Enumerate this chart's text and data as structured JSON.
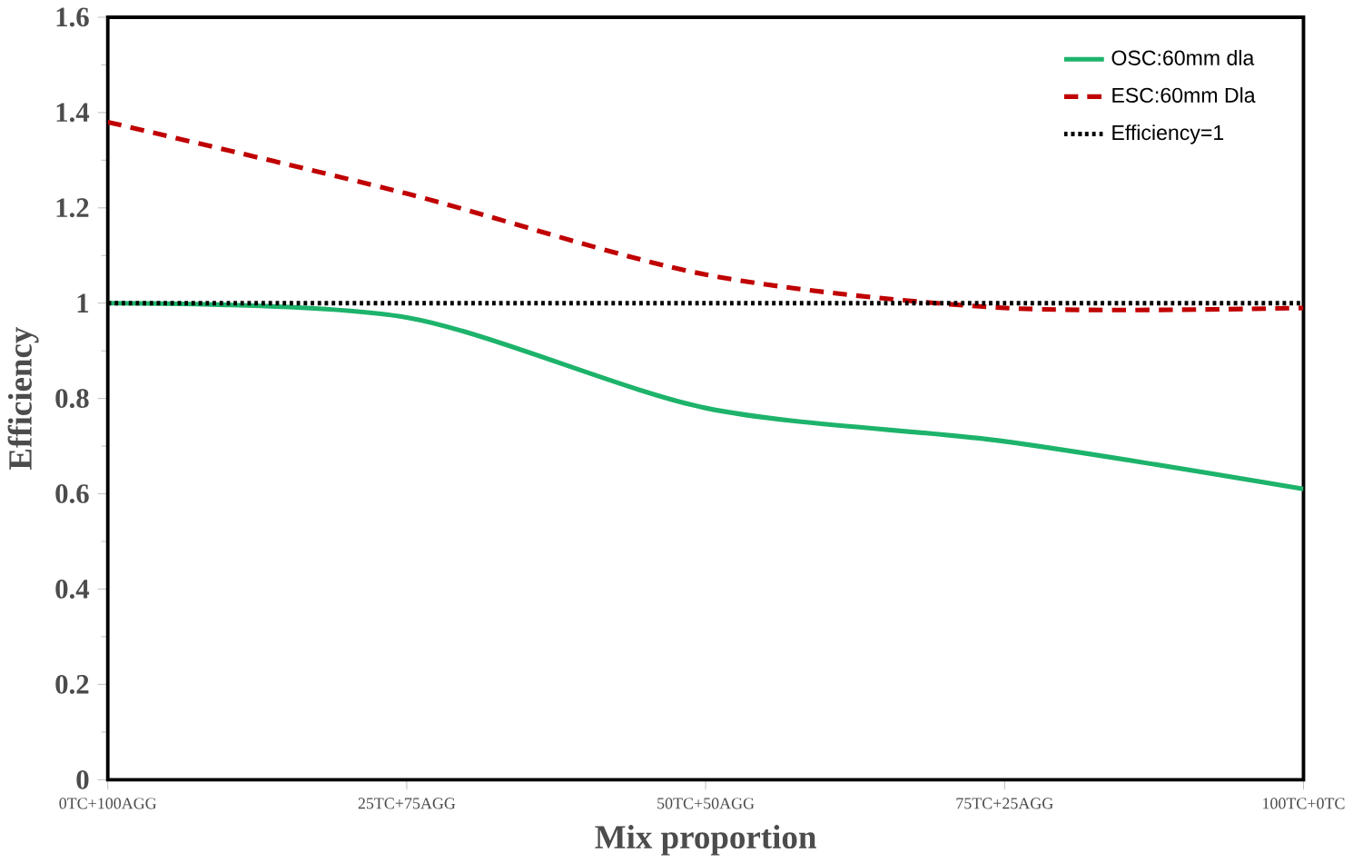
{
  "chart_data": {
    "type": "line",
    "xlabel": "Mix proportion",
    "ylabel": "Efficiency",
    "categories": [
      "0TC+100AGG",
      "25TC+75AGG",
      "50TC+50AGG",
      "75TC+25AGG",
      "100TC+0TC"
    ],
    "series": [
      {
        "name": "OSC:60mm dla",
        "color": "#1db36b",
        "line_style": "solid",
        "values": [
          1.0,
          0.97,
          0.78,
          0.71,
          0.61
        ]
      },
      {
        "name": "ESC:60mm Dla",
        "color": "#c00000",
        "line_style": "dashed",
        "values": [
          1.38,
          1.23,
          1.06,
          0.99,
          0.99
        ]
      },
      {
        "name": "Efficiency=1",
        "color": "#000000",
        "line_style": "dotted",
        "values": [
          1,
          1,
          1,
          1,
          1
        ]
      }
    ],
    "ylim": [
      0,
      1.6
    ],
    "yticks": [
      0,
      0.2,
      0.4,
      0.6,
      0.8,
      1,
      1.2,
      1.4,
      1.6
    ],
    "grid": false,
    "legend": "top right",
    "marker": "none"
  }
}
